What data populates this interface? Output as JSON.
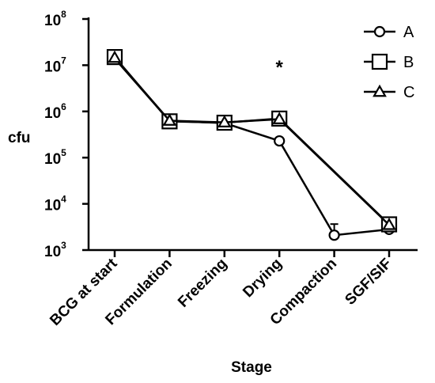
{
  "chart_data": {
    "type": "line",
    "xlabel": "Stage",
    "ylabel": "cfu",
    "yscale": "log",
    "ylim": [
      1000,
      100000000
    ],
    "yticks": [
      {
        "base": "10",
        "exp": "3",
        "value": 1000
      },
      {
        "base": "10",
        "exp": "4",
        "value": 10000
      },
      {
        "base": "10",
        "exp": "5",
        "value": 100000
      },
      {
        "base": "10",
        "exp": "6",
        "value": 1000000
      },
      {
        "base": "10",
        "exp": "7",
        "value": 10000000
      },
      {
        "base": "10",
        "exp": "8",
        "value": 100000000
      }
    ],
    "categories": [
      "BCG at start",
      "Formulation",
      "Freezing",
      "Drying",
      "Compaction",
      "SGF/SIF"
    ],
    "series": [
      {
        "name": "A",
        "marker": "circle",
        "values": [
          14000000,
          620000,
          560000,
          230000,
          2100,
          2800
        ]
      },
      {
        "name": "B",
        "marker": "square",
        "values": [
          15000000,
          610000,
          570000,
          700000,
          null,
          3600
        ]
      },
      {
        "name": "C",
        "marker": "triangle",
        "values": [
          14500000,
          630000,
          580000,
          680000,
          null,
          3500
        ]
      }
    ],
    "annotations": [
      {
        "text": "*",
        "category": "Drying"
      }
    ],
    "legend": "top-right",
    "grid": false,
    "colors": {
      "line": "#000000",
      "marker_fill": "#ffffff"
    }
  }
}
